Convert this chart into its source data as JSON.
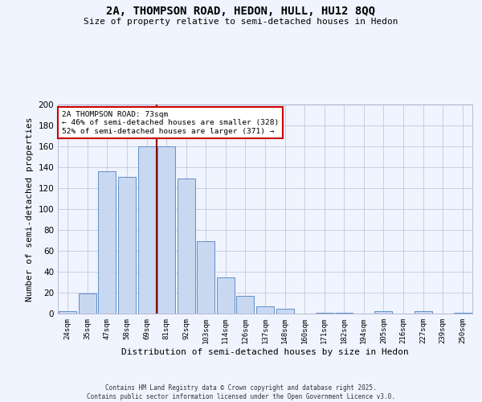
{
  "title1": "2A, THOMPSON ROAD, HEDON, HULL, HU12 8QQ",
  "title2": "Size of property relative to semi-detached houses in Hedon",
  "xlabel": "Distribution of semi-detached houses by size in Hedon",
  "ylabel": "Number of semi-detached properties",
  "categories": [
    "24sqm",
    "35sqm",
    "47sqm",
    "58sqm",
    "69sqm",
    "81sqm",
    "92sqm",
    "103sqm",
    "114sqm",
    "126sqm",
    "137sqm",
    "148sqm",
    "160sqm",
    "171sqm",
    "182sqm",
    "194sqm",
    "205sqm",
    "216sqm",
    "227sqm",
    "239sqm",
    "250sqm"
  ],
  "values": [
    2,
    19,
    136,
    131,
    160,
    160,
    129,
    69,
    35,
    17,
    7,
    5,
    0,
    1,
    1,
    0,
    2,
    0,
    2,
    0,
    1
  ],
  "bar_color": "#c8d8f0",
  "bar_edge_color": "#6090c8",
  "property_label": "2A THOMPSON ROAD: 73sqm",
  "pct_smaller": 46,
  "count_smaller": 328,
  "pct_larger": 52,
  "count_larger": 371,
  "vline_color": "#8b0000",
  "vline_x_index": 4.5,
  "annotation_box_color": "#ffffff",
  "annotation_box_edge": "#cc0000",
  "ylim": [
    0,
    200
  ],
  "yticks": [
    0,
    20,
    40,
    60,
    80,
    100,
    120,
    140,
    160,
    180,
    200
  ],
  "footer1": "Contains HM Land Registry data © Crown copyright and database right 2025.",
  "footer2": "Contains public sector information licensed under the Open Government Licence v3.0.",
  "bg_color": "#f0f4ff",
  "grid_color": "#c0c8e0"
}
